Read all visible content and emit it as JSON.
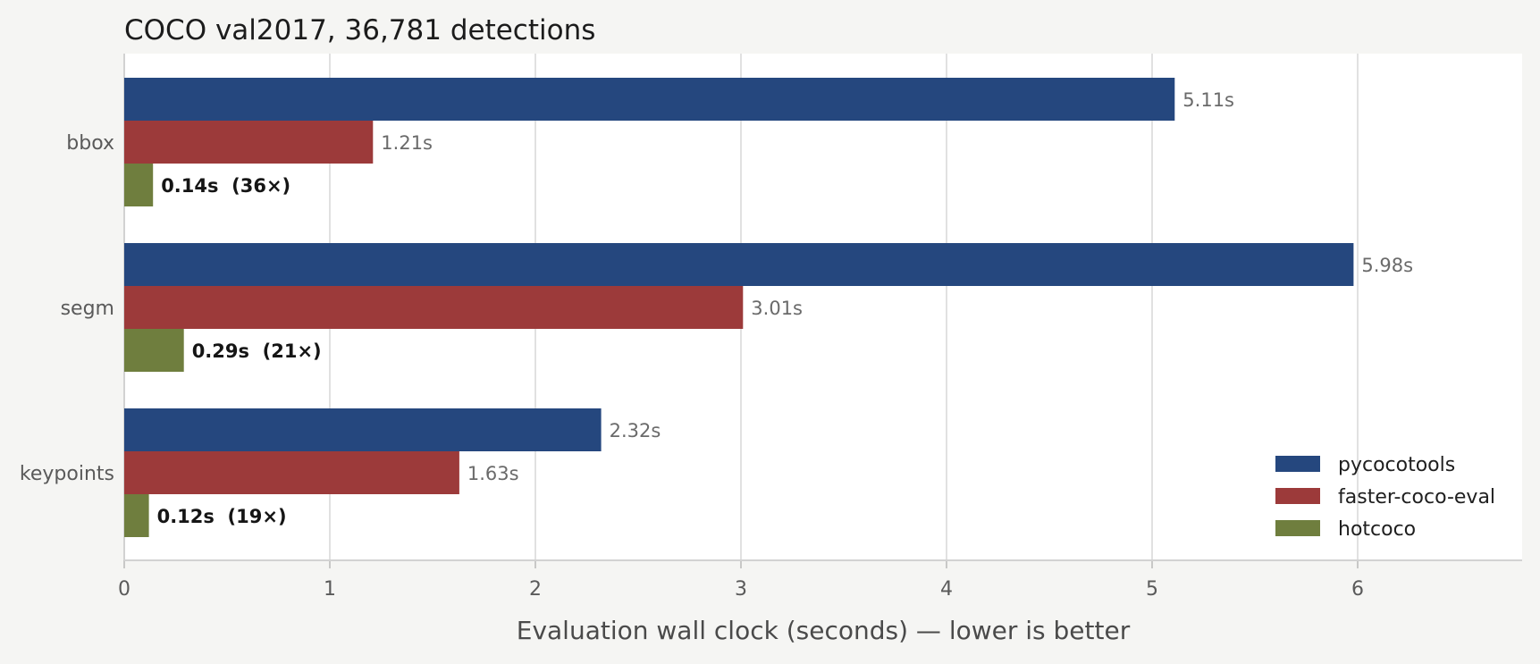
{
  "chart_data": {
    "type": "bar",
    "orientation": "horizontal",
    "title": "COCO val2017, 36,781 detections",
    "xlabel": "Evaluation wall clock (seconds) — lower is better",
    "ylabel": "",
    "xlim": [
      0,
      6.8
    ],
    "xticks": [
      0,
      1,
      2,
      3,
      4,
      5,
      6
    ],
    "grid": "x",
    "legend_position": "bottom-right",
    "categories": [
      "bbox",
      "segm",
      "keypoints"
    ],
    "series": [
      {
        "name": "pycocotools",
        "color": "#25477e",
        "values": [
          5.11,
          5.98,
          2.32
        ],
        "labels": [
          "5.11s",
          "5.98s",
          "2.32s"
        ]
      },
      {
        "name": "faster-coco-eval",
        "color": "#9c3a3a",
        "values": [
          1.21,
          3.01,
          1.63
        ],
        "labels": [
          "1.21s",
          "3.01s",
          "1.63s"
        ]
      },
      {
        "name": "hotcoco",
        "color": "#6f7e3e",
        "values": [
          0.14,
          0.29,
          0.12
        ],
        "labels": [
          "0.14s  (36×)",
          "0.29s  (21×)",
          "0.12s  (19×)"
        ]
      }
    ]
  },
  "colors": {
    "background": "#f5f5f3",
    "plot_background": "#ffffff",
    "grid": "#e1e1e1",
    "axis": "#d2d2d2"
  }
}
